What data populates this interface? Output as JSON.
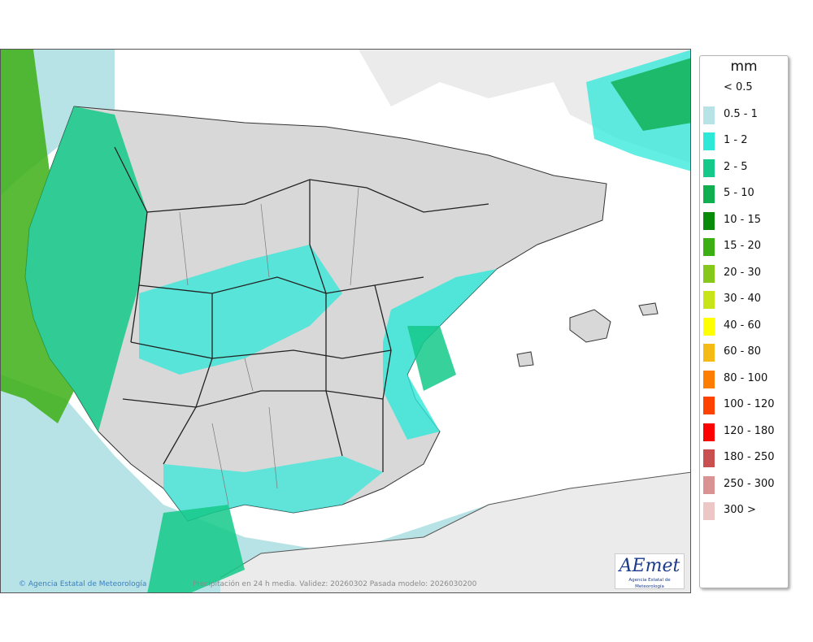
{
  "map": {
    "credit": "Agencia Estatal de Meteorología",
    "caption": "Precipitación en 24 h media. Validez: 20260302 Pasada modelo: 2026030200",
    "logo_word": "AEmet",
    "logo_subtitle": "Agencia Estatal de Meteorología",
    "colors": {
      "sea": "#ffffff",
      "land_outside": "#ebebeb",
      "land_iberia": "#d8d8d8",
      "border": "#222222"
    }
  },
  "legend": {
    "unit": "mm",
    "items": [
      {
        "label": "< 0.5",
        "color": ""
      },
      {
        "label": "0.5 - 1",
        "color": "#b8e3e6"
      },
      {
        "label": "1 - 2",
        "color": "#2ee8d8"
      },
      {
        "label": "2 - 5",
        "color": "#14c98a"
      },
      {
        "label": "5 - 10",
        "color": "#0fae4f"
      },
      {
        "label": "10 - 15",
        "color": "#0a8a0a"
      },
      {
        "label": "15 - 20",
        "color": "#3caf14"
      },
      {
        "label": "20 - 30",
        "color": "#86c81a"
      },
      {
        "label": "30 - 40",
        "color": "#c6e418"
      },
      {
        "label": "40 - 60",
        "color": "#ffff00"
      },
      {
        "label": "60 - 80",
        "color": "#f5bb14"
      },
      {
        "label": "80 - 100",
        "color": "#ff7d00"
      },
      {
        "label": "100 - 120",
        "color": "#ff4200"
      },
      {
        "label": "120 - 180",
        "color": "#ff0000"
      },
      {
        "label": "180 - 250",
        "color": "#c85050"
      },
      {
        "label": "250 - 300",
        "color": "#d99393"
      },
      {
        "label": "300 >",
        "color": "#edc6c6"
      }
    ]
  }
}
